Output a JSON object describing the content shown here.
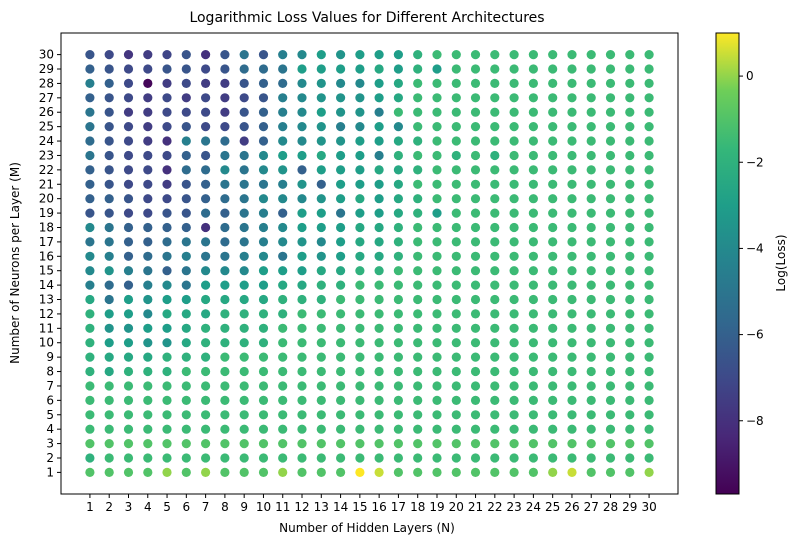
{
  "chart_data": {
    "type": "scatter",
    "title": "Logarithmic Loss Values for Different Architectures",
    "xlabel": "Number of Hidden Layers (N)",
    "ylabel": "Number of Neurons per Layer (M)",
    "x_ticks": [
      "1",
      "2",
      "3",
      "4",
      "5",
      "6",
      "7",
      "8",
      "9",
      "10",
      "11",
      "12",
      "13",
      "14",
      "15",
      "16",
      "17",
      "18",
      "19",
      "20",
      "21",
      "22",
      "23",
      "24",
      "25",
      "26",
      "27",
      "28",
      "29",
      "30"
    ],
    "y_ticks": [
      "1",
      "2",
      "3",
      "4",
      "5",
      "6",
      "7",
      "8",
      "9",
      "10",
      "11",
      "12",
      "13",
      "14",
      "15",
      "16",
      "17",
      "18",
      "19",
      "20",
      "21",
      "22",
      "23",
      "24",
      "25",
      "26",
      "27",
      "28",
      "29",
      "30"
    ],
    "xlim": [
      -0.5,
      31.5
    ],
    "ylim": [
      -0.5,
      31.5
    ],
    "colorbar": {
      "label": "Log(Loss)",
      "range": [
        -9.7,
        1.0
      ],
      "ticks": [
        "0",
        "−2",
        "−4",
        "−6",
        "−8"
      ],
      "tick_values": [
        0,
        -2,
        -4,
        -6,
        -8
      ],
      "colormap": "viridis"
    },
    "grid": false,
    "note_values": "value = log loss at (N hidden layers, M neurons); rows listed from M=30 down to M=1",
    "values_rows_M30_to_M1": [
      [
        -6.5,
        -7.0,
        -7.8,
        -7.5,
        -7.2,
        -6.5,
        -8.0,
        -6.5,
        -5.0,
        -6.5,
        -4.5,
        -4.0,
        -3.0,
        -3.5,
        -3.0,
        -3.0,
        -3.0,
        -2.0,
        -1.5,
        -1.5,
        -1.5,
        -1.5,
        -1.5,
        -1.5,
        -1.5,
        -1.5,
        -1.5,
        -1.5,
        -1.5,
        -1.5
      ],
      [
        -6.0,
        -6.5,
        -7.0,
        -7.0,
        -6.5,
        -6.5,
        -7.0,
        -6.5,
        -5.5,
        -5.5,
        -5.0,
        -3.0,
        -3.0,
        -3.0,
        -3.0,
        -2.5,
        -3.0,
        -2.0,
        -3.0,
        -1.5,
        -1.5,
        -1.5,
        -1.5,
        -1.5,
        -1.5,
        -1.5,
        -1.5,
        -1.5,
        -1.5,
        -1.5
      ],
      [
        -4.5,
        -6.0,
        -7.0,
        -9.5,
        -7.5,
        -7.0,
        -7.5,
        -7.5,
        -6.5,
        -6.0,
        -5.5,
        -4.0,
        -3.5,
        -4.0,
        -4.0,
        -3.0,
        -2.5,
        -1.5,
        -1.5,
        -1.5,
        -1.5,
        -1.5,
        -1.5,
        -1.5,
        -1.5,
        -1.5,
        -1.5,
        -1.5,
        -1.5,
        -1.5
      ],
      [
        -6.0,
        -6.5,
        -7.0,
        -7.5,
        -7.0,
        -7.5,
        -7.0,
        -7.5,
        -7.0,
        -6.5,
        -4.5,
        -4.0,
        -3.5,
        -3.5,
        -3.5,
        -3.0,
        -2.5,
        -1.5,
        -1.5,
        -1.5,
        -1.5,
        -1.5,
        -1.5,
        -1.5,
        -1.5,
        -1.5,
        -1.5,
        -1.5,
        -1.5,
        -1.5
      ],
      [
        -5.0,
        -6.5,
        -7.5,
        -7.5,
        -7.0,
        -7.0,
        -7.0,
        -7.5,
        -6.5,
        -6.0,
        -4.5,
        -4.0,
        -3.0,
        -3.5,
        -3.5,
        -4.5,
        -1.5,
        -1.5,
        -1.5,
        -1.5,
        -1.5,
        -1.5,
        -1.5,
        -1.5,
        -1.5,
        -1.5,
        -1.5,
        -1.5,
        -1.5,
        -1.5
      ],
      [
        -5.0,
        -6.5,
        -7.0,
        -7.5,
        -7.0,
        -6.5,
        -7.0,
        -7.0,
        -6.5,
        -6.0,
        -4.5,
        -4.0,
        -3.5,
        -4.5,
        -4.0,
        -3.0,
        -4.0,
        -1.5,
        -1.5,
        -1.5,
        -1.5,
        -1.5,
        -1.5,
        -1.5,
        -1.5,
        -1.5,
        -1.5,
        -1.5,
        -1.5,
        -1.5
      ],
      [
        -5.5,
        -6.5,
        -7.0,
        -7.5,
        -8.0,
        -4.5,
        -5.0,
        -5.5,
        -7.5,
        -6.0,
        -4.0,
        -4.0,
        -3.5,
        -3.5,
        -3.0,
        -3.0,
        -2.5,
        -2.0,
        -1.5,
        -1.5,
        -1.5,
        -1.5,
        -1.5,
        -1.5,
        -1.5,
        -1.5,
        -1.5,
        -1.5,
        -1.5,
        -1.5
      ],
      [
        -5.0,
        -6.5,
        -7.0,
        -7.0,
        -7.0,
        -6.0,
        -6.5,
        -5.0,
        -5.0,
        -4.0,
        -3.0,
        -3.0,
        -2.5,
        -3.0,
        -3.0,
        -4.5,
        -2.0,
        -1.5,
        -1.5,
        -2.0,
        -1.5,
        -2.0,
        -1.5,
        -1.5,
        -1.5,
        -1.5,
        -1.5,
        -1.5,
        -1.5,
        -1.5
      ],
      [
        -6.0,
        -6.5,
        -7.0,
        -7.0,
        -8.0,
        -5.5,
        -5.5,
        -4.0,
        -5.0,
        -4.0,
        -3.5,
        -6.0,
        -3.0,
        -3.0,
        -3.0,
        -2.5,
        -2.5,
        -2.0,
        -1.5,
        -1.5,
        -1.5,
        -1.5,
        -1.5,
        -1.5,
        -1.5,
        -1.5,
        -1.5,
        -1.5,
        -1.5,
        -1.5
      ],
      [
        -6.0,
        -6.5,
        -7.0,
        -7.0,
        -7.5,
        -6.5,
        -6.0,
        -5.0,
        -5.0,
        -5.0,
        -4.5,
        -3.5,
        -6.0,
        -3.0,
        -3.0,
        -3.0,
        -2.5,
        -1.5,
        -1.5,
        -1.5,
        -1.5,
        -1.5,
        -1.5,
        -1.5,
        -1.5,
        -1.5,
        -1.5,
        -1.5,
        -1.5,
        -1.5
      ],
      [
        -6.0,
        -6.0,
        -6.5,
        -7.0,
        -7.0,
        -6.5,
        -6.0,
        -5.5,
        -5.0,
        -4.0,
        -4.0,
        -4.0,
        -3.5,
        -3.0,
        -2.5,
        -3.0,
        -2.5,
        -2.0,
        -1.5,
        -1.5,
        -1.5,
        -1.5,
        -1.5,
        -1.5,
        -1.5,
        -1.5,
        -1.5,
        -1.5,
        -1.5,
        -1.5
      ],
      [
        -6.5,
        -6.5,
        -7.0,
        -7.0,
        -6.5,
        -6.5,
        -5.5,
        -6.0,
        -5.0,
        -4.5,
        -6.0,
        -3.0,
        -3.0,
        -5.0,
        -3.0,
        -3.0,
        -2.5,
        -2.0,
        -3.0,
        -1.5,
        -1.5,
        -1.5,
        -1.5,
        -1.5,
        -1.5,
        -1.5,
        -1.5,
        -1.5,
        -1.5,
        -1.5
      ],
      [
        -4.0,
        -5.0,
        -6.0,
        -6.0,
        -6.0,
        -6.0,
        -8.0,
        -5.5,
        -5.0,
        -4.5,
        -4.0,
        -3.0,
        -3.0,
        -3.0,
        -2.5,
        -2.5,
        -2.0,
        -1.5,
        -1.5,
        -1.5,
        -1.5,
        -1.5,
        -1.5,
        -1.5,
        -1.5,
        -1.5,
        -1.5,
        -1.5,
        -1.5,
        -1.5
      ],
      [
        -5.0,
        -5.0,
        -6.0,
        -6.0,
        -5.5,
        -5.0,
        -5.0,
        -5.5,
        -5.0,
        -4.5,
        -4.0,
        -3.5,
        -4.0,
        -3.0,
        -2.5,
        -2.5,
        -2.0,
        -1.5,
        -1.5,
        -1.5,
        -1.5,
        -1.5,
        -1.5,
        -1.5,
        -1.5,
        -1.5,
        -1.5,
        -1.5,
        -1.5,
        -1.5
      ],
      [
        -4.0,
        -4.5,
        -6.0,
        -5.5,
        -5.0,
        -4.5,
        -5.0,
        -5.0,
        -4.5,
        -4.0,
        -5.0,
        -3.0,
        -3.5,
        -3.0,
        -2.5,
        -2.5,
        -2.0,
        -1.5,
        -1.5,
        -1.5,
        -1.5,
        -1.5,
        -1.5,
        -1.5,
        -1.5,
        -1.5,
        -1.5,
        -1.5,
        -1.5,
        -1.5
      ],
      [
        -4.0,
        -3.5,
        -4.5,
        -5.0,
        -6.0,
        -5.0,
        -4.0,
        -4.0,
        -4.0,
        -3.0,
        -3.0,
        -3.0,
        -2.5,
        -2.5,
        -2.0,
        -2.0,
        -1.5,
        -1.5,
        -1.5,
        -1.5,
        -1.5,
        -1.5,
        -1.5,
        -1.5,
        -1.5,
        -1.5,
        -1.5,
        -1.5,
        -1.5,
        -1.5
      ],
      [
        -4.5,
        -5.5,
        -6.0,
        -4.5,
        -4.0,
        -5.0,
        -3.0,
        -3.0,
        -3.0,
        -3.0,
        -2.5,
        -2.5,
        -2.0,
        -2.0,
        -1.5,
        -1.5,
        -1.5,
        -1.5,
        -1.5,
        -1.5,
        -1.5,
        -1.5,
        -1.5,
        -1.5,
        -1.5,
        -1.5,
        -1.5,
        -1.5,
        -1.5,
        -1.5
      ],
      [
        -2.5,
        -5.0,
        -3.0,
        -3.5,
        -3.0,
        -3.0,
        -2.5,
        -2.5,
        -2.5,
        -2.5,
        -2.0,
        -2.0,
        -2.0,
        -1.5,
        -1.5,
        -1.5,
        -1.5,
        -1.5,
        -1.5,
        -1.5,
        -1.5,
        -1.5,
        -1.5,
        -1.5,
        -1.5,
        -1.5,
        -1.5,
        -1.5,
        -1.5,
        -1.5
      ],
      [
        -2.0,
        -3.0,
        -3.0,
        -4.0,
        -2.5,
        -2.5,
        -2.5,
        -2.0,
        -2.0,
        -2.0,
        -2.0,
        -1.5,
        -1.5,
        -1.5,
        -1.5,
        -1.5,
        -1.5,
        -1.5,
        -1.5,
        -1.5,
        -1.5,
        -1.5,
        -1.5,
        -1.5,
        -1.5,
        -1.5,
        -1.5,
        -1.5,
        -1.5,
        -1.5
      ],
      [
        -2.0,
        -3.5,
        -3.5,
        -3.0,
        -3.0,
        -2.5,
        -2.0,
        -2.0,
        -2.0,
        -2.0,
        -1.5,
        -1.5,
        -1.5,
        -1.5,
        -1.5,
        -1.5,
        -1.5,
        -1.5,
        -1.5,
        -1.5,
        -1.5,
        -1.5,
        -1.5,
        -1.5,
        -1.5,
        -1.5,
        -1.5,
        -1.5,
        -1.5,
        -1.5
      ],
      [
        -2.0,
        -3.0,
        -3.0,
        -3.5,
        -3.5,
        -2.5,
        -2.0,
        -2.0,
        -2.0,
        -2.0,
        -1.5,
        -1.5,
        -1.5,
        -1.5,
        -1.5,
        -1.5,
        -1.5,
        -1.5,
        -1.5,
        -1.5,
        -1.5,
        -1.5,
        -1.5,
        -1.5,
        -1.5,
        -1.5,
        -1.5,
        -1.5,
        -1.5,
        -1.5
      ],
      [
        -2.0,
        -2.5,
        -2.5,
        -2.5,
        -2.0,
        -2.0,
        -2.0,
        -1.5,
        -1.5,
        -1.5,
        -1.5,
        -1.5,
        -1.5,
        -1.5,
        -1.5,
        -1.5,
        -1.5,
        -1.5,
        -1.5,
        -1.5,
        -1.5,
        -1.5,
        -1.5,
        -1.5,
        -1.5,
        -1.5,
        -1.5,
        -1.5,
        -1.5,
        -1.5
      ],
      [
        -2.0,
        -2.5,
        -2.0,
        -2.0,
        -2.0,
        -1.5,
        -1.5,
        -1.5,
        -1.5,
        -1.5,
        -1.5,
        -1.5,
        -1.5,
        -1.5,
        -1.5,
        -1.5,
        -1.5,
        -1.5,
        -1.5,
        -1.5,
        -1.5,
        -1.5,
        -1.5,
        -1.5,
        -1.5,
        -1.5,
        -1.5,
        -1.5,
        -1.5,
        -1.5
      ],
      [
        -1.5,
        -1.5,
        -1.5,
        -1.5,
        -1.5,
        -1.5,
        -1.5,
        -1.5,
        -1.5,
        -1.5,
        -1.5,
        -1.5,
        -1.5,
        -1.5,
        -1.5,
        -1.5,
        -1.5,
        -1.5,
        -1.5,
        -1.5,
        -1.5,
        -1.5,
        -1.5,
        -1.5,
        -1.5,
        -1.5,
        -1.5,
        -1.5,
        -1.5,
        -1.5
      ],
      [
        -1.5,
        -1.5,
        -1.5,
        -1.5,
        -1.5,
        -1.5,
        -1.5,
        -1.5,
        -1.5,
        -1.5,
        -1.5,
        -1.5,
        -1.5,
        -1.5,
        -1.5,
        -1.5,
        -1.5,
        -1.5,
        -1.5,
        -1.5,
        -1.5,
        -1.5,
        -1.5,
        -1.5,
        -1.5,
        -1.5,
        -1.5,
        -1.5,
        -1.5,
        -1.5
      ],
      [
        -1.5,
        -1.5,
        -1.5,
        -1.5,
        -1.5,
        -1.5,
        -1.5,
        -1.5,
        -1.5,
        -1.5,
        -1.5,
        -1.5,
        -1.5,
        -1.5,
        -1.5,
        -1.5,
        -1.5,
        -1.5,
        -1.5,
        -1.5,
        -1.5,
        -1.5,
        -1.5,
        -1.5,
        -1.5,
        -1.5,
        -1.5,
        -1.5,
        -1.5,
        -1.5
      ],
      [
        -1.5,
        -1.5,
        -1.5,
        -1.5,
        -1.5,
        -1.5,
        -1.5,
        -1.5,
        -1.5,
        -1.5,
        -1.5,
        -1.5,
        -1.5,
        -1.5,
        -1.5,
        -1.5,
        -1.5,
        -1.5,
        -1.5,
        -1.5,
        -1.5,
        -1.5,
        -1.5,
        -1.5,
        -1.5,
        -1.5,
        -1.5,
        -1.5,
        -1.5,
        -1.5
      ],
      [
        -1.0,
        -1.0,
        -1.0,
        -1.0,
        -1.0,
        -1.0,
        -1.0,
        -1.0,
        -1.0,
        -1.0,
        -1.0,
        -1.0,
        -1.0,
        -1.0,
        -1.0,
        -1.0,
        -1.0,
        -1.0,
        -1.0,
        -1.0,
        -1.0,
        -1.0,
        -1.0,
        -1.0,
        -1.0,
        -1.0,
        -1.0,
        -1.0,
        -1.0,
        -1.0
      ],
      [
        -2.0,
        -1.5,
        -1.5,
        -1.5,
        -1.5,
        -1.5,
        -1.5,
        -1.5,
        -1.5,
        -1.5,
        -1.5,
        -1.5,
        -1.5,
        -1.5,
        -1.5,
        -1.5,
        -1.5,
        -1.5,
        -1.5,
        -1.5,
        -1.5,
        -1.5,
        -1.5,
        -1.5,
        -1.5,
        -1.5,
        -1.5,
        -1.5,
        -1.5,
        -1.5
      ],
      [
        -1.0,
        -1.0,
        -1.0,
        -1.0,
        0.0,
        -1.0,
        0.0,
        -1.0,
        -1.0,
        -1.0,
        0.0,
        -1.0,
        -1.0,
        -1.0,
        1.0,
        0.5,
        -1.0,
        -1.0,
        -1.0,
        -1.0,
        -1.0,
        -1.0,
        -1.0,
        -1.0,
        0.0,
        0.5,
        -1.0,
        -1.0,
        -1.0,
        0.0
      ]
    ]
  }
}
